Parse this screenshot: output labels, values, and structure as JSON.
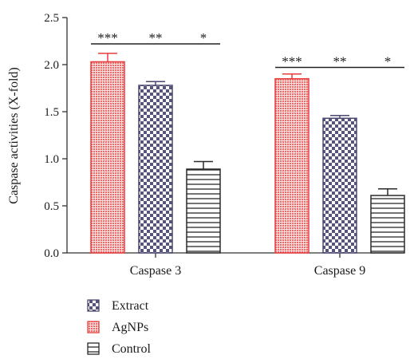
{
  "chart_data": {
    "type": "bar",
    "categories": [
      "Caspase 3",
      "Caspase 9"
    ],
    "series": [
      {
        "name": "AgNPs",
        "values": [
          2.03,
          1.85
        ],
        "errors": [
          0.09,
          0.05
        ],
        "fill": "#f07878",
        "stroke": "#e83c3c",
        "pattern": "dots"
      },
      {
        "name": "Extract",
        "values": [
          1.78,
          1.43
        ],
        "errors": [
          0.04,
          0.03
        ],
        "fill": "#6b6a8c",
        "stroke": "#4a4870",
        "pattern": "checker"
      },
      {
        "name": "Control",
        "values": [
          0.89,
          0.61
        ],
        "errors": [
          0.08,
          0.07
        ],
        "fill": "#ffffff",
        "stroke": "#2a2a2a",
        "pattern": "hlines"
      }
    ],
    "legend_order": [
      "Extract",
      "AgNPs",
      "Control"
    ],
    "legend_position": "bottom-left",
    "ylabel": "Caspase activities (X-fold)",
    "xlabel": "",
    "ylim": [
      0,
      2.5
    ],
    "yticks": [
      "0.0",
      "0.5",
      "1.0",
      "1.5",
      "2.0",
      "2.5"
    ],
    "grid": false,
    "significance": [
      {
        "category": "Caspase 3",
        "level": 2.22,
        "marks": [
          "***",
          "**",
          "*"
        ]
      },
      {
        "category": "Caspase 9",
        "level": 1.97,
        "marks": [
          "***",
          "**",
          "*"
        ]
      }
    ]
  }
}
